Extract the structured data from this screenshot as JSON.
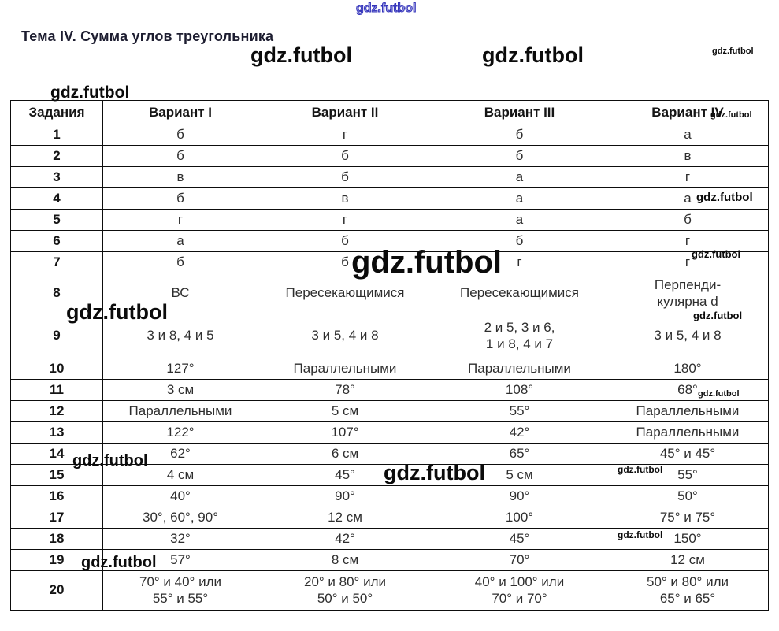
{
  "page": {
    "title": "Тема IV. Сумма углов треугольника"
  },
  "watermark": {
    "text": "gdz.futbol"
  },
  "table": {
    "headers": [
      "Задания",
      "Вариант I",
      "Вариант II",
      "Вариант III",
      "Вариант IV"
    ],
    "rows": [
      {
        "task": "1",
        "answers": [
          "б",
          "г",
          "б",
          "а"
        ]
      },
      {
        "task": "2",
        "answers": [
          "б",
          "б",
          "б",
          "в"
        ]
      },
      {
        "task": "3",
        "answers": [
          "в",
          "б",
          "а",
          "г"
        ]
      },
      {
        "task": "4",
        "answers": [
          "б",
          "в",
          "а",
          "а"
        ]
      },
      {
        "task": "5",
        "answers": [
          "г",
          "г",
          "а",
          "б"
        ]
      },
      {
        "task": "6",
        "answers": [
          "а",
          "б",
          "б",
          "г"
        ]
      },
      {
        "task": "7",
        "answers": [
          "б",
          "б",
          "г",
          "г"
        ]
      },
      {
        "task": "8",
        "answers": [
          "ВС",
          "Пересекающимися",
          "Пересекающимися",
          "Перпенди-\nкулярна d"
        ]
      },
      {
        "task": "9",
        "answers": [
          "3 и 8, 4 и 5",
          "3 и 5, 4 и 8",
          "2 и 5, 3 и 6,\n1 и 8, 4 и 7",
          "3 и 5, 4 и 8"
        ]
      },
      {
        "task": "10",
        "answers": [
          "127°",
          "Параллельными",
          "Параллельными",
          "180°"
        ]
      },
      {
        "task": "11",
        "answers": [
          "3 см",
          "78°",
          "108°",
          "68°"
        ]
      },
      {
        "task": "12",
        "answers": [
          "Параллельными",
          "5 см",
          "55°",
          "Параллельными"
        ]
      },
      {
        "task": "13",
        "answers": [
          "122°",
          "107°",
          "42°",
          "Параллельными"
        ]
      },
      {
        "task": "14",
        "answers": [
          "62°",
          "6 см",
          "65°",
          "45° и 45°"
        ]
      },
      {
        "task": "15",
        "answers": [
          "4 см",
          "45°",
          "5 см",
          "55°"
        ]
      },
      {
        "task": "16",
        "answers": [
          "40°",
          "90°",
          "90°",
          "50°"
        ]
      },
      {
        "task": "17",
        "answers": [
          "30°, 60°, 90°",
          "12 см",
          "100°",
          "75° и 75°"
        ]
      },
      {
        "task": "18",
        "answers": [
          "32°",
          "42°",
          "45°",
          "150°"
        ]
      },
      {
        "task": "19",
        "answers": [
          "57°",
          "8 см",
          "70°",
          "12 см"
        ]
      },
      {
        "task": "20",
        "answers": [
          "70° и 40° или\n55° и 55°",
          "20° и 80° или\n50° и 50°",
          "40° и 100° или\n70° и 70°",
          "50° и 80° или\n65° и 65°"
        ]
      }
    ]
  }
}
